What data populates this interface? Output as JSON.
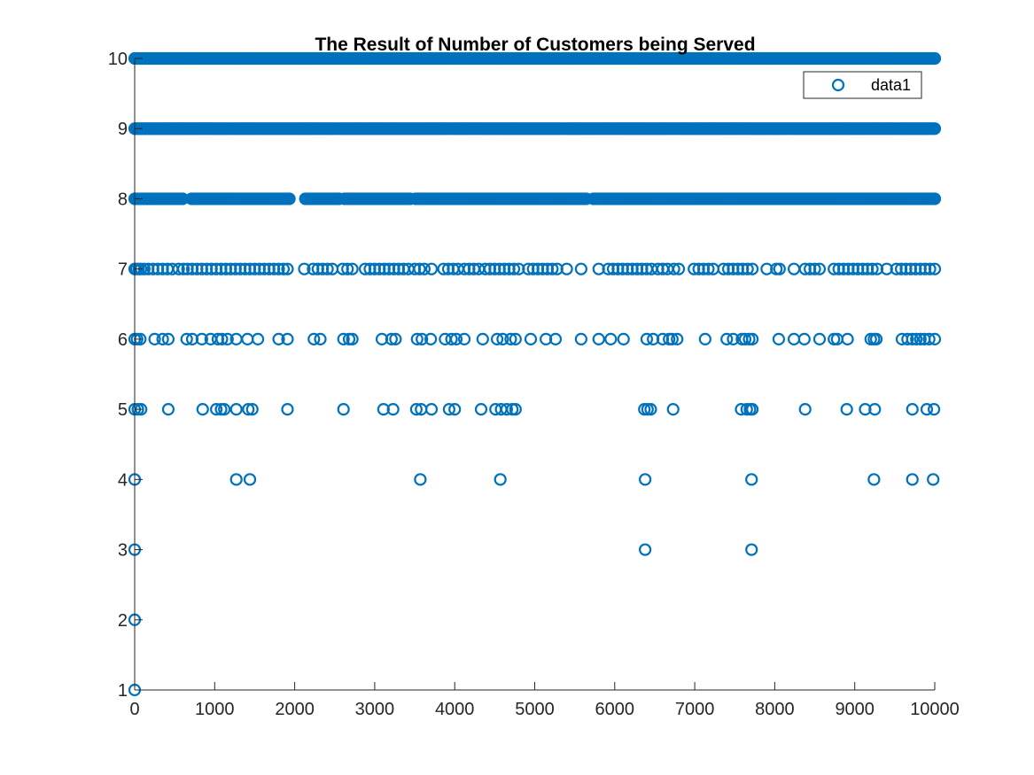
{
  "chart_data": {
    "type": "scatter",
    "title": "The Result of Number of Customers being Served",
    "xlabel": "",
    "ylabel": "",
    "xlim": [
      0,
      10000
    ],
    "ylim": [
      1,
      10
    ],
    "xticks": [
      "0",
      "1000",
      "2000",
      "3000",
      "4000",
      "5000",
      "6000",
      "7000",
      "8000",
      "9000",
      "10000"
    ],
    "yticks": [
      "1",
      "2",
      "3",
      "4",
      "5",
      "6",
      "7",
      "8",
      "9",
      "10"
    ],
    "grid": false,
    "legend": {
      "entries": [
        "data1"
      ],
      "placement": "top-right"
    },
    "marker": "o",
    "series": [
      {
        "name": "data1",
        "color": "#0072BD",
        "dense_levels": [
          {
            "y": 10,
            "x_range": [
              0,
              10000
            ]
          },
          {
            "y": 9,
            "x_range": [
              0,
              10000
            ]
          },
          {
            "y": 8,
            "x_range": [
              0,
              10000
            ],
            "x_gaps": [
              [
                620,
                700
              ],
              [
                1950,
                2120
              ],
              [
                2560,
                2620
              ],
              [
                3450,
                3500
              ],
              [
                5650,
                5720
              ]
            ]
          }
        ],
        "points": [
          {
            "x": 0,
            "y": 1
          },
          {
            "x": 0,
            "y": 2
          },
          {
            "x": 0,
            "y": 3
          },
          {
            "x": 6380,
            "y": 3
          },
          {
            "x": 7710,
            "y": 3
          },
          {
            "x": 0,
            "y": 4
          },
          {
            "x": 1270,
            "y": 4
          },
          {
            "x": 1440,
            "y": 4
          },
          {
            "x": 3570,
            "y": 4
          },
          {
            "x": 4570,
            "y": 4
          },
          {
            "x": 6380,
            "y": 4
          },
          {
            "x": 7710,
            "y": 4
          },
          {
            "x": 9240,
            "y": 4
          },
          {
            "x": 9720,
            "y": 4
          },
          {
            "x": 9980,
            "y": 4
          },
          {
            "x": 0,
            "y": 5
          },
          {
            "x": 40,
            "y": 5
          },
          {
            "x": 80,
            "y": 5
          },
          {
            "x": 420,
            "y": 5
          },
          {
            "x": 850,
            "y": 5
          },
          {
            "x": 1020,
            "y": 5
          },
          {
            "x": 1080,
            "y": 5
          },
          {
            "x": 1120,
            "y": 5
          },
          {
            "x": 1270,
            "y": 5
          },
          {
            "x": 1420,
            "y": 5
          },
          {
            "x": 1470,
            "y": 5
          },
          {
            "x": 1910,
            "y": 5
          },
          {
            "x": 2610,
            "y": 5
          },
          {
            "x": 3110,
            "y": 5
          },
          {
            "x": 3230,
            "y": 5
          },
          {
            "x": 3520,
            "y": 5
          },
          {
            "x": 3580,
            "y": 5
          },
          {
            "x": 3710,
            "y": 5
          },
          {
            "x": 3930,
            "y": 5
          },
          {
            "x": 4000,
            "y": 5
          },
          {
            "x": 4330,
            "y": 5
          },
          {
            "x": 4510,
            "y": 5
          },
          {
            "x": 4580,
            "y": 5
          },
          {
            "x": 4650,
            "y": 5
          },
          {
            "x": 4720,
            "y": 5
          },
          {
            "x": 4760,
            "y": 5
          },
          {
            "x": 6370,
            "y": 5
          },
          {
            "x": 6410,
            "y": 5
          },
          {
            "x": 6450,
            "y": 5
          },
          {
            "x": 6730,
            "y": 5
          },
          {
            "x": 7580,
            "y": 5
          },
          {
            "x": 7650,
            "y": 5
          },
          {
            "x": 7690,
            "y": 5
          },
          {
            "x": 7720,
            "y": 5
          },
          {
            "x": 8380,
            "y": 5
          },
          {
            "x": 8900,
            "y": 5
          },
          {
            "x": 9130,
            "y": 5
          },
          {
            "x": 9250,
            "y": 5
          },
          {
            "x": 9720,
            "y": 5
          },
          {
            "x": 9900,
            "y": 5
          },
          {
            "x": 9990,
            "y": 5
          },
          {
            "x": 0,
            "y": 6
          },
          {
            "x": 30,
            "y": 6
          },
          {
            "x": 70,
            "y": 6
          },
          {
            "x": 250,
            "y": 6
          },
          {
            "x": 350,
            "y": 6
          },
          {
            "x": 420,
            "y": 6
          },
          {
            "x": 650,
            "y": 6
          },
          {
            "x": 720,
            "y": 6
          },
          {
            "x": 840,
            "y": 6
          },
          {
            "x": 950,
            "y": 6
          },
          {
            "x": 1040,
            "y": 6
          },
          {
            "x": 1090,
            "y": 6
          },
          {
            "x": 1160,
            "y": 6
          },
          {
            "x": 1270,
            "y": 6
          },
          {
            "x": 1410,
            "y": 6
          },
          {
            "x": 1540,
            "y": 6
          },
          {
            "x": 1800,
            "y": 6
          },
          {
            "x": 1910,
            "y": 6
          },
          {
            "x": 2240,
            "y": 6
          },
          {
            "x": 2320,
            "y": 6
          },
          {
            "x": 2610,
            "y": 6
          },
          {
            "x": 2680,
            "y": 6
          },
          {
            "x": 2720,
            "y": 6
          },
          {
            "x": 3090,
            "y": 6
          },
          {
            "x": 3210,
            "y": 6
          },
          {
            "x": 3260,
            "y": 6
          },
          {
            "x": 3530,
            "y": 6
          },
          {
            "x": 3590,
            "y": 6
          },
          {
            "x": 3700,
            "y": 6
          },
          {
            "x": 3880,
            "y": 6
          },
          {
            "x": 3960,
            "y": 6
          },
          {
            "x": 4020,
            "y": 6
          },
          {
            "x": 4120,
            "y": 6
          },
          {
            "x": 4350,
            "y": 6
          },
          {
            "x": 4530,
            "y": 6
          },
          {
            "x": 4600,
            "y": 6
          },
          {
            "x": 4700,
            "y": 6
          },
          {
            "x": 4760,
            "y": 6
          },
          {
            "x": 4950,
            "y": 6
          },
          {
            "x": 5140,
            "y": 6
          },
          {
            "x": 5260,
            "y": 6
          },
          {
            "x": 5580,
            "y": 6
          },
          {
            "x": 5800,
            "y": 6
          },
          {
            "x": 5950,
            "y": 6
          },
          {
            "x": 6110,
            "y": 6
          },
          {
            "x": 6400,
            "y": 6
          },
          {
            "x": 6480,
            "y": 6
          },
          {
            "x": 6600,
            "y": 6
          },
          {
            "x": 6680,
            "y": 6
          },
          {
            "x": 6720,
            "y": 6
          },
          {
            "x": 6780,
            "y": 6
          },
          {
            "x": 7130,
            "y": 6
          },
          {
            "x": 7400,
            "y": 6
          },
          {
            "x": 7480,
            "y": 6
          },
          {
            "x": 7590,
            "y": 6
          },
          {
            "x": 7630,
            "y": 6
          },
          {
            "x": 7680,
            "y": 6
          },
          {
            "x": 7720,
            "y": 6
          },
          {
            "x": 8050,
            "y": 6
          },
          {
            "x": 8240,
            "y": 6
          },
          {
            "x": 8370,
            "y": 6
          },
          {
            "x": 8560,
            "y": 6
          },
          {
            "x": 8740,
            "y": 6
          },
          {
            "x": 8780,
            "y": 6
          },
          {
            "x": 8910,
            "y": 6
          },
          {
            "x": 9200,
            "y": 6
          },
          {
            "x": 9240,
            "y": 6
          },
          {
            "x": 9270,
            "y": 6
          },
          {
            "x": 9590,
            "y": 6
          },
          {
            "x": 9660,
            "y": 6
          },
          {
            "x": 9720,
            "y": 6
          },
          {
            "x": 9770,
            "y": 6
          },
          {
            "x": 9820,
            "y": 6
          },
          {
            "x": 9870,
            "y": 6
          },
          {
            "x": 9930,
            "y": 6
          },
          {
            "x": 10000,
            "y": 6
          },
          {
            "x": 0,
            "y": 7
          },
          {
            "x": 20,
            "y": 7
          },
          {
            "x": 50,
            "y": 7
          },
          {
            "x": 80,
            "y": 7
          },
          {
            "x": 120,
            "y": 7
          },
          {
            "x": 170,
            "y": 7
          },
          {
            "x": 230,
            "y": 7
          },
          {
            "x": 290,
            "y": 7
          },
          {
            "x": 350,
            "y": 7
          },
          {
            "x": 410,
            "y": 7
          },
          {
            "x": 470,
            "y": 7
          },
          {
            "x": 550,
            "y": 7
          },
          {
            "x": 610,
            "y": 7
          },
          {
            "x": 660,
            "y": 7
          },
          {
            "x": 720,
            "y": 7
          },
          {
            "x": 780,
            "y": 7
          },
          {
            "x": 840,
            "y": 7
          },
          {
            "x": 900,
            "y": 7
          },
          {
            "x": 960,
            "y": 7
          },
          {
            "x": 1020,
            "y": 7
          },
          {
            "x": 1080,
            "y": 7
          },
          {
            "x": 1140,
            "y": 7
          },
          {
            "x": 1200,
            "y": 7
          },
          {
            "x": 1260,
            "y": 7
          },
          {
            "x": 1320,
            "y": 7
          },
          {
            "x": 1380,
            "y": 7
          },
          {
            "x": 1440,
            "y": 7
          },
          {
            "x": 1500,
            "y": 7
          },
          {
            "x": 1560,
            "y": 7
          },
          {
            "x": 1620,
            "y": 7
          },
          {
            "x": 1680,
            "y": 7
          },
          {
            "x": 1740,
            "y": 7
          },
          {
            "x": 1800,
            "y": 7
          },
          {
            "x": 1860,
            "y": 7
          },
          {
            "x": 1910,
            "y": 7
          },
          {
            "x": 2120,
            "y": 7
          },
          {
            "x": 2230,
            "y": 7
          },
          {
            "x": 2290,
            "y": 7
          },
          {
            "x": 2350,
            "y": 7
          },
          {
            "x": 2410,
            "y": 7
          },
          {
            "x": 2470,
            "y": 7
          },
          {
            "x": 2600,
            "y": 7
          },
          {
            "x": 2660,
            "y": 7
          },
          {
            "x": 2720,
            "y": 7
          },
          {
            "x": 2880,
            "y": 7
          },
          {
            "x": 2940,
            "y": 7
          },
          {
            "x": 3000,
            "y": 7
          },
          {
            "x": 3060,
            "y": 7
          },
          {
            "x": 3120,
            "y": 7
          },
          {
            "x": 3180,
            "y": 7
          },
          {
            "x": 3240,
            "y": 7
          },
          {
            "x": 3300,
            "y": 7
          },
          {
            "x": 3360,
            "y": 7
          },
          {
            "x": 3420,
            "y": 7
          },
          {
            "x": 3500,
            "y": 7
          },
          {
            "x": 3560,
            "y": 7
          },
          {
            "x": 3620,
            "y": 7
          },
          {
            "x": 3710,
            "y": 7
          },
          {
            "x": 3860,
            "y": 7
          },
          {
            "x": 3920,
            "y": 7
          },
          {
            "x": 3980,
            "y": 7
          },
          {
            "x": 4040,
            "y": 7
          },
          {
            "x": 4120,
            "y": 7
          },
          {
            "x": 4180,
            "y": 7
          },
          {
            "x": 4240,
            "y": 7
          },
          {
            "x": 4300,
            "y": 7
          },
          {
            "x": 4380,
            "y": 7
          },
          {
            "x": 4440,
            "y": 7
          },
          {
            "x": 4500,
            "y": 7
          },
          {
            "x": 4560,
            "y": 7
          },
          {
            "x": 4620,
            "y": 7
          },
          {
            "x": 4680,
            "y": 7
          },
          {
            "x": 4740,
            "y": 7
          },
          {
            "x": 4800,
            "y": 7
          },
          {
            "x": 4920,
            "y": 7
          },
          {
            "x": 4980,
            "y": 7
          },
          {
            "x": 5040,
            "y": 7
          },
          {
            "x": 5100,
            "y": 7
          },
          {
            "x": 5160,
            "y": 7
          },
          {
            "x": 5220,
            "y": 7
          },
          {
            "x": 5280,
            "y": 7
          },
          {
            "x": 5400,
            "y": 7
          },
          {
            "x": 5580,
            "y": 7
          },
          {
            "x": 5800,
            "y": 7
          },
          {
            "x": 5920,
            "y": 7
          },
          {
            "x": 5980,
            "y": 7
          },
          {
            "x": 6040,
            "y": 7
          },
          {
            "x": 6100,
            "y": 7
          },
          {
            "x": 6160,
            "y": 7
          },
          {
            "x": 6220,
            "y": 7
          },
          {
            "x": 6280,
            "y": 7
          },
          {
            "x": 6340,
            "y": 7
          },
          {
            "x": 6400,
            "y": 7
          },
          {
            "x": 6460,
            "y": 7
          },
          {
            "x": 6540,
            "y": 7
          },
          {
            "x": 6600,
            "y": 7
          },
          {
            "x": 6660,
            "y": 7
          },
          {
            "x": 6740,
            "y": 7
          },
          {
            "x": 6800,
            "y": 7
          },
          {
            "x": 6990,
            "y": 7
          },
          {
            "x": 7050,
            "y": 7
          },
          {
            "x": 7110,
            "y": 7
          },
          {
            "x": 7170,
            "y": 7
          },
          {
            "x": 7230,
            "y": 7
          },
          {
            "x": 7360,
            "y": 7
          },
          {
            "x": 7420,
            "y": 7
          },
          {
            "x": 7480,
            "y": 7
          },
          {
            "x": 7540,
            "y": 7
          },
          {
            "x": 7600,
            "y": 7
          },
          {
            "x": 7660,
            "y": 7
          },
          {
            "x": 7720,
            "y": 7
          },
          {
            "x": 7900,
            "y": 7
          },
          {
            "x": 8020,
            "y": 7
          },
          {
            "x": 8060,
            "y": 7
          },
          {
            "x": 8240,
            "y": 7
          },
          {
            "x": 8380,
            "y": 7
          },
          {
            "x": 8440,
            "y": 7
          },
          {
            "x": 8500,
            "y": 7
          },
          {
            "x": 8560,
            "y": 7
          },
          {
            "x": 8740,
            "y": 7
          },
          {
            "x": 8800,
            "y": 7
          },
          {
            "x": 8860,
            "y": 7
          },
          {
            "x": 8920,
            "y": 7
          },
          {
            "x": 8980,
            "y": 7
          },
          {
            "x": 9040,
            "y": 7
          },
          {
            "x": 9100,
            "y": 7
          },
          {
            "x": 9160,
            "y": 7
          },
          {
            "x": 9220,
            "y": 7
          },
          {
            "x": 9280,
            "y": 7
          },
          {
            "x": 9400,
            "y": 7
          },
          {
            "x": 9520,
            "y": 7
          },
          {
            "x": 9580,
            "y": 7
          },
          {
            "x": 9640,
            "y": 7
          },
          {
            "x": 9700,
            "y": 7
          },
          {
            "x": 9760,
            "y": 7
          },
          {
            "x": 9820,
            "y": 7
          },
          {
            "x": 9880,
            "y": 7
          },
          {
            "x": 9940,
            "y": 7
          },
          {
            "x": 10000,
            "y": 7
          }
        ]
      }
    ]
  }
}
